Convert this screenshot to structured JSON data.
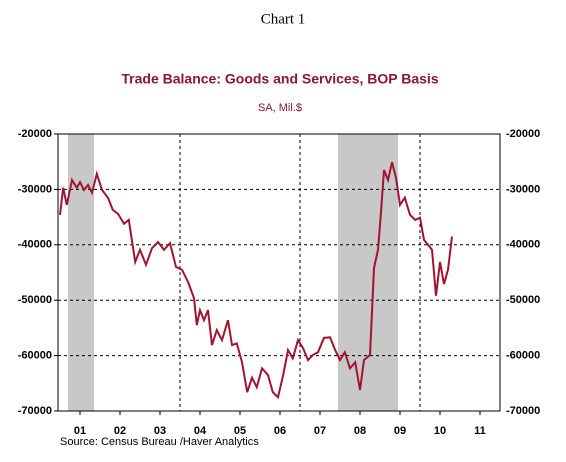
{
  "header": "Chart 1",
  "chart_data": {
    "type": "line",
    "title": "Trade Balance:  Goods and Services, BOP Basis",
    "subtitle": "SA, Mil.$",
    "source": "Source:  Census Bureau /Haver Analytics",
    "xlim": [
      2000.95,
      2012.0
    ],
    "xticks": [
      {
        "value": 2001.5,
        "label": "01"
      },
      {
        "value": 2002.5,
        "label": "02"
      },
      {
        "value": 2003.5,
        "label": "03"
      },
      {
        "value": 2004.5,
        "label": "04"
      },
      {
        "value": 2005.5,
        "label": "05"
      },
      {
        "value": 2006.5,
        "label": "06"
      },
      {
        "value": 2007.5,
        "label": "07"
      },
      {
        "value": 2008.5,
        "label": "08"
      },
      {
        "value": 2009.5,
        "label": "09"
      },
      {
        "value": 2010.5,
        "label": "10"
      },
      {
        "value": 2011.5,
        "label": "11"
      }
    ],
    "xgrid": [
      2004,
      2007,
      2010
    ],
    "ylim": [
      -70000,
      -20000
    ],
    "yticks": [
      -20000,
      -30000,
      -40000,
      -50000,
      -60000,
      -70000
    ],
    "grid": true,
    "recessions": [
      [
        2001.2,
        2001.85
      ],
      [
        2007.95,
        2009.45
      ]
    ],
    "recession_color": "#c8c8c8",
    "series": [
      {
        "name": "Trade Balance",
        "color": "#a0142f",
        "x": [
          2001.0,
          2001.08,
          2001.17,
          2001.3,
          2001.42,
          2001.5,
          2001.6,
          2001.7,
          2001.8,
          2001.92,
          2002.05,
          2002.2,
          2002.32,
          2002.45,
          2002.6,
          2002.72,
          2002.88,
          2003.0,
          2003.15,
          2003.3,
          2003.45,
          2003.6,
          2003.75,
          2003.9,
          2004.05,
          2004.2,
          2004.35,
          2004.42,
          2004.5,
          2004.6,
          2004.7,
          2004.8,
          2004.92,
          2005.05,
          2005.2,
          2005.3,
          2005.42,
          2005.55,
          2005.68,
          2005.8,
          2005.92,
          2006.05,
          2006.2,
          2006.32,
          2006.45,
          2006.58,
          2006.7,
          2006.82,
          2006.95,
          2007.08,
          2007.2,
          2007.32,
          2007.45,
          2007.6,
          2007.75,
          2007.88,
          2008.0,
          2008.12,
          2008.25,
          2008.38,
          2008.5,
          2008.6,
          2008.75,
          2008.85,
          2008.95,
          2009.02,
          2009.1,
          2009.2,
          2009.3,
          2009.4,
          2009.5,
          2009.62,
          2009.75,
          2009.88,
          2010.0,
          2010.1,
          2010.2,
          2010.3,
          2010.4,
          2010.5,
          2010.6,
          2010.7,
          2010.8
        ],
        "values": [
          -34600,
          -29700,
          -32800,
          -28300,
          -29700,
          -28700,
          -30100,
          -29200,
          -30600,
          -27200,
          -30100,
          -31500,
          -33700,
          -34400,
          -36200,
          -35500,
          -43100,
          -40900,
          -43600,
          -40600,
          -39500,
          -40900,
          -39700,
          -44000,
          -44500,
          -46700,
          -49600,
          -54500,
          -51800,
          -53600,
          -51800,
          -58100,
          -55400,
          -57200,
          -53600,
          -58100,
          -57800,
          -61200,
          -66600,
          -64000,
          -65700,
          -62300,
          -63500,
          -66600,
          -67500,
          -63500,
          -59000,
          -60500,
          -57200,
          -58700,
          -60800,
          -59900,
          -59400,
          -56800,
          -56700,
          -59000,
          -60800,
          -59400,
          -62300,
          -61200,
          -66200,
          -60800,
          -59900,
          -44200,
          -40900,
          -34600,
          -26500,
          -28300,
          -25100,
          -27900,
          -32800,
          -31500,
          -34600,
          -35500,
          -35100,
          -39100,
          -40000,
          -40900,
          -49200,
          -43100,
          -47100,
          -44500,
          -38500
        ]
      }
    ]
  }
}
